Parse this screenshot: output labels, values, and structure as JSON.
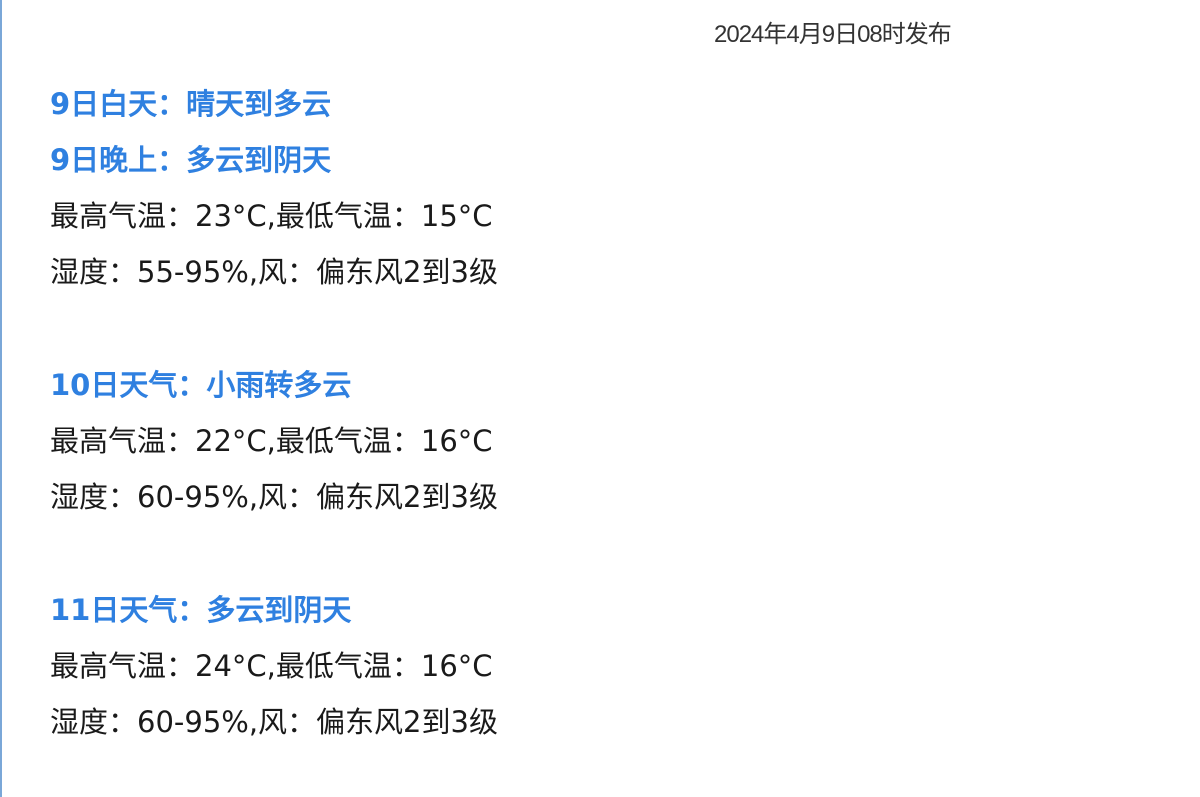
{
  "published": "2024年4月9日08时发布",
  "accent_color": "#2f80e0",
  "days": [
    {
      "headlines": [
        "9日白天：晴天到多云",
        "9日晚上：多云到阴天"
      ],
      "temperature": "最高气温：23°C,最低气温：15°C",
      "humidity_wind": "湿度：55-95%,风：偏东风2到3级"
    },
    {
      "headlines": [
        "10日天气：小雨转多云"
      ],
      "temperature": "最高气温：22°C,最低气温：16°C",
      "humidity_wind": "湿度：60-95%,风：偏东风2到3级"
    },
    {
      "headlines": [
        "11日天气：多云到阴天"
      ],
      "temperature": "最高气温：24°C,最低气温：16°C",
      "humidity_wind": "湿度：60-95%,风：偏东风2到3级"
    }
  ]
}
